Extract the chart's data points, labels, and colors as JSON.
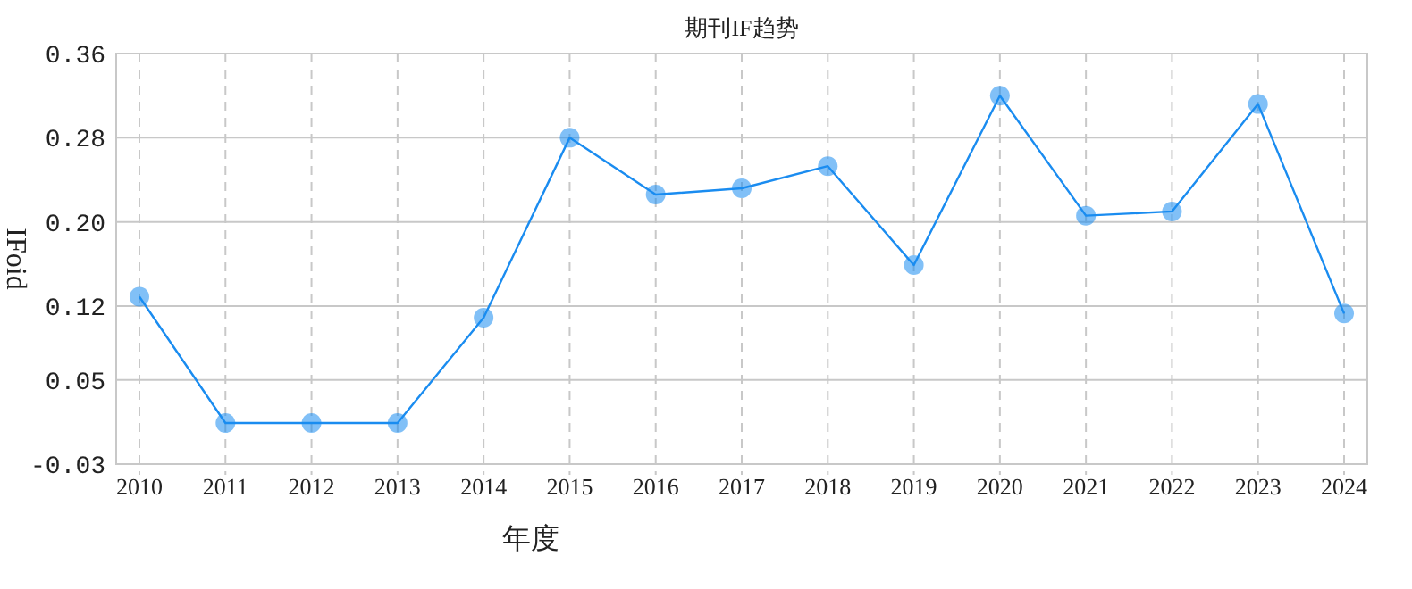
{
  "chart_data": {
    "type": "line",
    "title": "期刊IF趋势",
    "xlabel": "年度",
    "ylabel": "IFoid",
    "categories": [
      "2010",
      "2011",
      "2012",
      "2013",
      "2014",
      "2015",
      "2016",
      "2017",
      "2018",
      "2019",
      "2020",
      "2021",
      "2022",
      "2023",
      "2024"
    ],
    "series": [
      {
        "color": "#1a8cf0",
        "values": [
          0.129,
          0.009,
          0.009,
          0.009,
          0.109,
          0.28,
          0.226,
          0.232,
          0.253,
          0.159,
          0.32,
          0.206,
          0.21,
          0.312,
          0.113
        ]
      }
    ],
    "ylim": [
      -0.03,
      0.36
    ],
    "yticks": [
      -0.03,
      0.05,
      0.12,
      {
        "value": 0.2,
        "label": "0.20"
      },
      0.28,
      0.36
    ],
    "grid": true,
    "marker": "circle",
    "line_style": "solid"
  }
}
